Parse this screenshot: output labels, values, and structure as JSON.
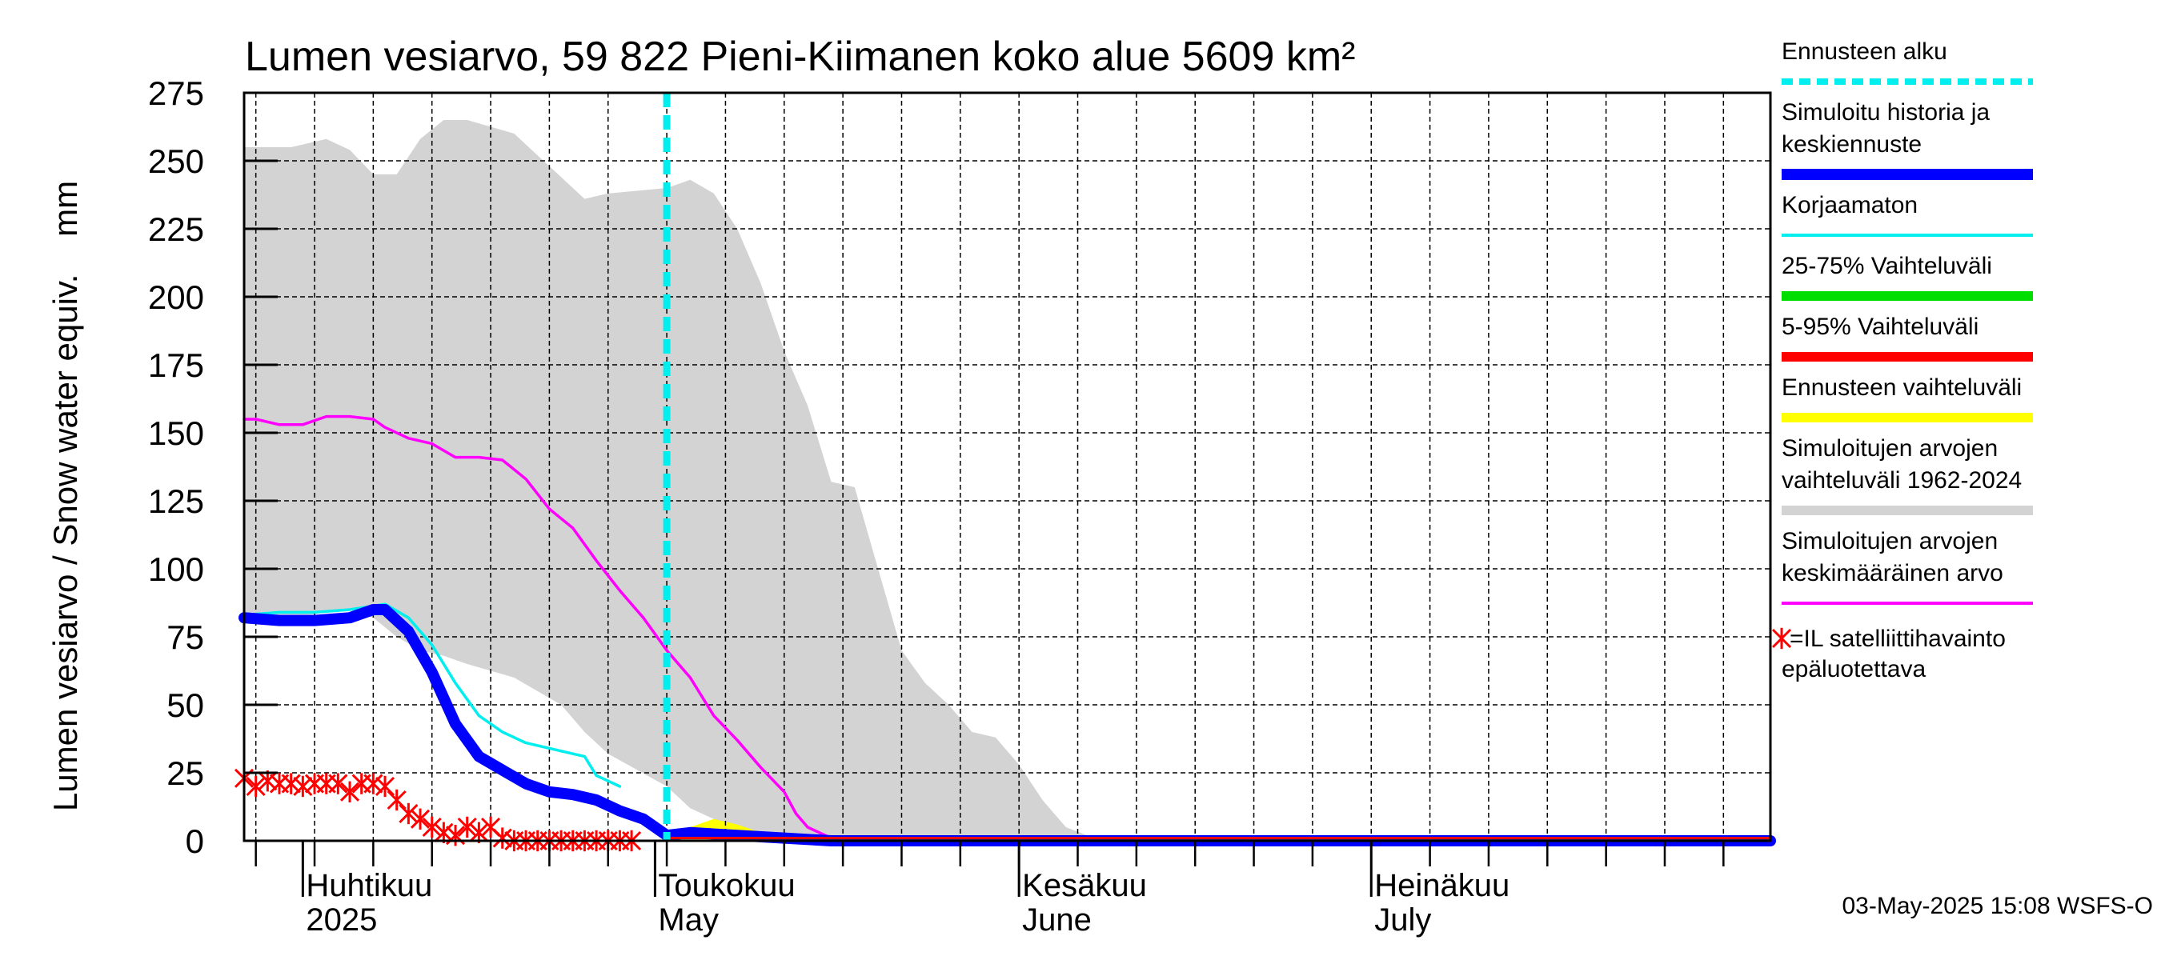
{
  "chart_data": {
    "type": "line",
    "title": "Lumen vesiarvo, 59 822 Pieni-Kiimanen koko alue 5609 km²",
    "ylabel": "Lumen vesiarvo / Snow water equiv.    mm",
    "ylim": [
      0,
      275
    ],
    "yticks": [
      0,
      25,
      50,
      75,
      100,
      125,
      150,
      175,
      200,
      225,
      250,
      275
    ],
    "xlim": [
      "2025-03-27",
      "2025-08-04"
    ],
    "grid": true,
    "legend_position": "right",
    "month_labels": [
      {
        "date": "2025-04-01",
        "fi": "Huhtikuu",
        "en": "2025"
      },
      {
        "date": "2025-05-01",
        "fi": "Toukokuu",
        "en": "May"
      },
      {
        "date": "2025-06-01",
        "fi": "Kesäkuu",
        "en": "June"
      },
      {
        "date": "2025-07-01",
        "fi": "Heinäkuu",
        "en": "July"
      }
    ],
    "forecast_start": "2025-05-02",
    "series": [
      {
        "name": "Simuloitujen arvojen vaihteluväli 1962-2024",
        "style": "band",
        "color": "#d3d3d3",
        "x": [
          "2025-03-27",
          "2025-03-31",
          "2025-04-03",
          "2025-04-05",
          "2025-04-07",
          "2025-04-09",
          "2025-04-11",
          "2025-04-13",
          "2025-04-15",
          "2025-04-19",
          "2025-04-21",
          "2025-04-23",
          "2025-04-25",
          "2025-04-27",
          "2025-05-02",
          "2025-05-04",
          "2025-05-06",
          "2025-05-08",
          "2025-05-10",
          "2025-05-12",
          "2025-05-14",
          "2025-05-16",
          "2025-05-18",
          "2025-05-20",
          "2025-05-22",
          "2025-05-24",
          "2025-05-26",
          "2025-05-28",
          "2025-05-30",
          "2025-06-01",
          "2025-06-03",
          "2025-06-05",
          "2025-06-08",
          "2025-08-04"
        ],
        "upper": [
          255,
          255,
          258,
          254,
          245,
          245,
          258,
          265,
          265,
          260,
          252,
          244,
          236,
          238,
          240,
          243,
          238,
          225,
          205,
          180,
          160,
          132,
          130,
          100,
          70,
          58,
          50,
          40,
          38,
          28,
          15,
          5,
          0,
          0
        ],
        "lower": [
          80,
          82,
          84,
          85,
          82,
          75,
          70,
          68,
          65,
          60,
          55,
          50,
          40,
          32,
          20,
          12,
          8,
          5,
          3,
          2,
          1,
          0,
          0,
          0,
          0,
          0,
          0,
          0,
          0,
          0,
          0,
          0,
          0,
          0
        ]
      },
      {
        "name": "Simuloitujen arvojen keskimääräinen arvo",
        "color": "#ff00ff",
        "x": [
          "2025-03-27",
          "2025-03-28",
          "2025-03-30",
          "2025-04-01",
          "2025-04-03",
          "2025-04-05",
          "2025-04-07",
          "2025-04-08",
          "2025-04-10",
          "2025-04-12",
          "2025-04-14",
          "2025-04-16",
          "2025-04-18",
          "2025-04-20",
          "2025-04-22",
          "2025-04-24",
          "2025-04-26",
          "2025-04-28",
          "2025-04-30",
          "2025-05-02",
          "2025-05-04",
          "2025-05-06",
          "2025-05-08",
          "2025-05-10",
          "2025-05-12",
          "2025-05-13",
          "2025-05-14",
          "2025-05-16",
          "2025-05-18",
          "2025-05-20",
          "2025-08-04"
        ],
        "values": [
          155,
          155,
          153,
          153,
          156,
          156,
          155,
          152,
          148,
          146,
          141,
          141,
          140,
          133,
          122,
          115,
          103,
          92,
          82,
          70,
          60,
          46,
          37,
          27,
          18,
          10,
          5,
          1,
          0.5,
          0,
          0
        ]
      },
      {
        "name": "Korjaamaton",
        "color": "#00eeee",
        "x": [
          "2025-03-27",
          "2025-03-30",
          "2025-04-02",
          "2025-04-05",
          "2025-04-08",
          "2025-04-10",
          "2025-04-12",
          "2025-04-14",
          "2025-04-16",
          "2025-04-18",
          "2025-04-20",
          "2025-04-23",
          "2025-04-25",
          "2025-04-26",
          "2025-04-28"
        ],
        "values": [
          83,
          84,
          84,
          85,
          87,
          82,
          72,
          58,
          46,
          40,
          36,
          33,
          31,
          24,
          20
        ]
      },
      {
        "name": "Ennusteen vaihteluväli",
        "style": "band",
        "color": "#ffff00",
        "x": [
          "2025-05-02",
          "2025-05-04",
          "2025-05-06",
          "2025-05-08",
          "2025-05-10"
        ],
        "upper": [
          2,
          5,
          8,
          6,
          3
        ],
        "lower": [
          1,
          1,
          1,
          1,
          1
        ]
      },
      {
        "name": "Simuloitu historia ja keskiennuste",
        "color": "#0000ff",
        "x": [
          "2025-03-27",
          "2025-03-30",
          "2025-04-02",
          "2025-04-05",
          "2025-04-07",
          "2025-04-08",
          "2025-04-10",
          "2025-04-12",
          "2025-04-14",
          "2025-04-16",
          "2025-04-18",
          "2025-04-20",
          "2025-04-22",
          "2025-04-24",
          "2025-04-26",
          "2025-04-28",
          "2025-04-30",
          "2025-05-02",
          "2025-05-04",
          "2025-05-08",
          "2025-05-12",
          "2025-05-16",
          "2025-08-04"
        ],
        "values": [
          82,
          81,
          81,
          82,
          85,
          85,
          77,
          62,
          43,
          31,
          26,
          21,
          18,
          17,
          15,
          11,
          8,
          2,
          3,
          2,
          1,
          0,
          0
        ]
      },
      {
        "name": "25-75% Vaihteluväli",
        "color": "#00dd00",
        "x": [
          "2025-05-02",
          "2025-08-04"
        ],
        "values": [
          1,
          1
        ]
      },
      {
        "name": "5-95% Vaihteluväli",
        "color": "#ff0000",
        "x": [
          "2025-05-02",
          "2025-08-04"
        ],
        "values": [
          1,
          1
        ]
      },
      {
        "name": "=IL satelliittihavainto epäluotettava",
        "style": "markers",
        "color": "#ff0000",
        "x": [
          "2025-03-27",
          "2025-03-28",
          "2025-03-29",
          "2025-03-30",
          "2025-03-31",
          "2025-04-01",
          "2025-04-02",
          "2025-04-03",
          "2025-04-04",
          "2025-04-05",
          "2025-04-06",
          "2025-04-07",
          "2025-04-08",
          "2025-04-09",
          "2025-04-10",
          "2025-04-11",
          "2025-04-12",
          "2025-04-13",
          "2025-04-14",
          "2025-04-15",
          "2025-04-16",
          "2025-04-17",
          "2025-04-18",
          "2025-04-19",
          "2025-04-20",
          "2025-04-21",
          "2025-04-22",
          "2025-04-23",
          "2025-04-24",
          "2025-04-25",
          "2025-04-26",
          "2025-04-27",
          "2025-04-28",
          "2025-04-29"
        ],
        "values": [
          23,
          20,
          22,
          21,
          21,
          20,
          21,
          21,
          21,
          18,
          21,
          21,
          20,
          15,
          10,
          8,
          5,
          3,
          2,
          5,
          3,
          5,
          1,
          0,
          0,
          0,
          0,
          0,
          0,
          0,
          0,
          0,
          0,
          0
        ]
      }
    ]
  },
  "legend": [
    {
      "label": [
        "Ennusteen alku"
      ],
      "color": "#00eeee",
      "style": "dashed"
    },
    {
      "label": [
        "Simuloitu historia ja",
        "keskiennuste"
      ],
      "color": "#0000ff",
      "style": "thick"
    },
    {
      "label": [
        "Korjaamaton"
      ],
      "color": "#00eeee",
      "style": "thin"
    },
    {
      "label": [
        "25-75% Vaihteluväli"
      ],
      "color": "#00dd00",
      "style": "bar"
    },
    {
      "label": [
        "5-95% Vaihteluväli"
      ],
      "color": "#ff0000",
      "style": "bar"
    },
    {
      "label": [
        "Ennusteen vaihteluväli"
      ],
      "color": "#ffff00",
      "style": "bar"
    },
    {
      "label": [
        "Simuloitujen arvojen",
        "vaihteluväli 1962-2024"
      ],
      "color": "#d3d3d3",
      "style": "bar"
    },
    {
      "label": [
        "Simuloitujen arvojen",
        "keskimääräinen arvo"
      ],
      "color": "#ff00ff",
      "style": "thin"
    },
    {
      "label": [
        "=IL satelliittihavainto",
        "epäluotettava"
      ],
      "color": "#ff0000",
      "style": "marker"
    }
  ],
  "footer": "03-May-2025 15:08 WSFS-O"
}
